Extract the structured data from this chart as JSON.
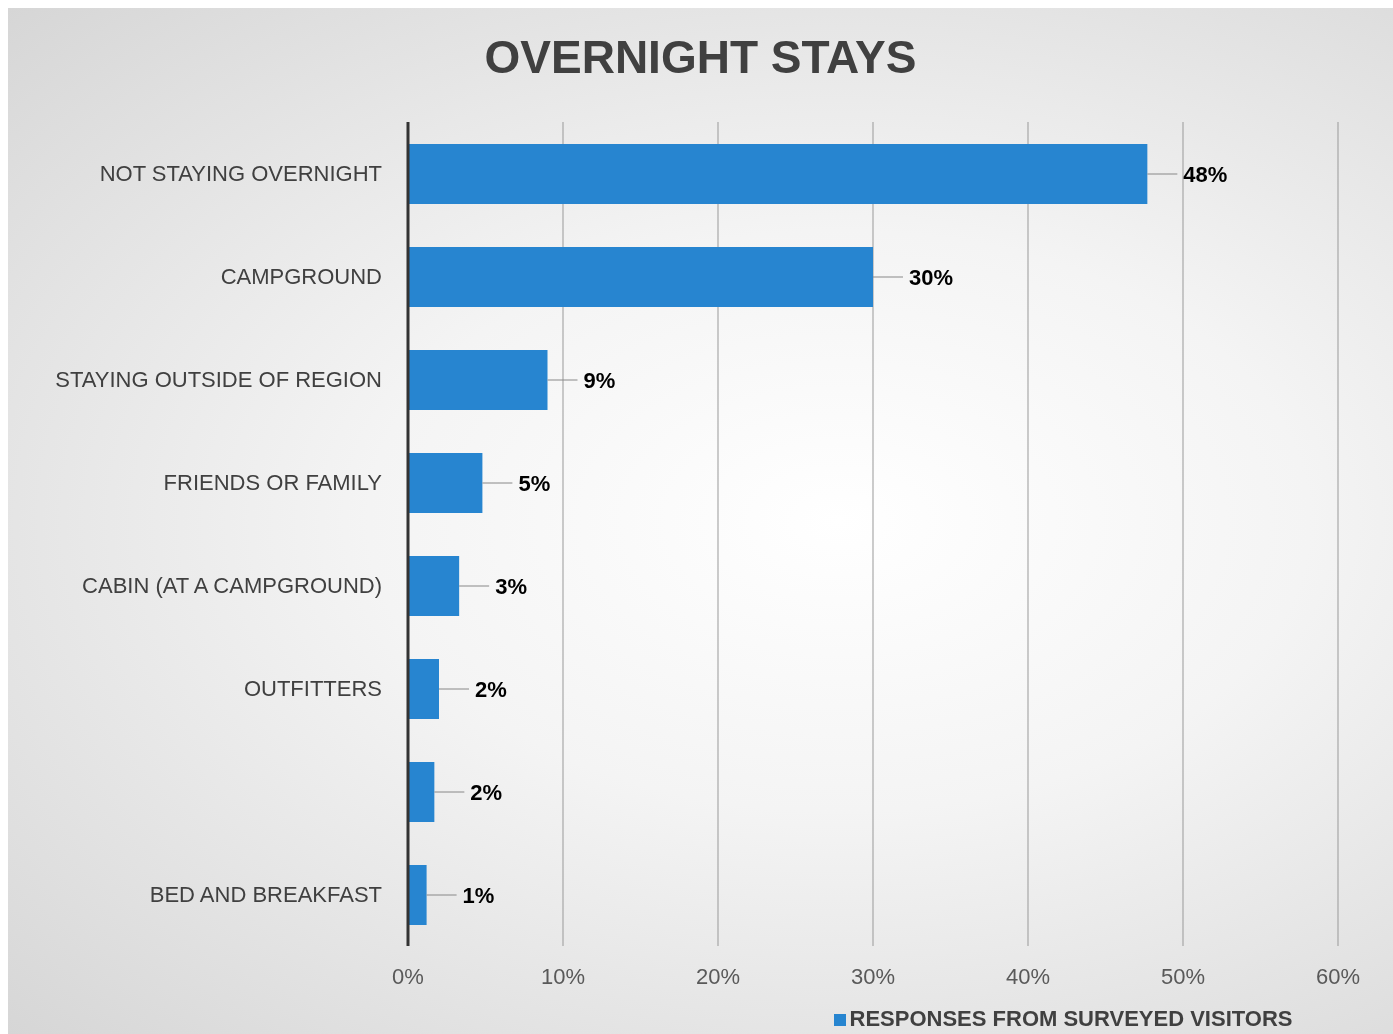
{
  "chart_data": {
    "type": "bar",
    "orientation": "horizontal",
    "title": "OVERNIGHT STAYS",
    "categories": [
      "NOT STAYING OVERNIGHT",
      "CAMPGROUND",
      "STAYING OUTSIDE OF REGION",
      "FRIENDS OR FAMILY",
      "CABIN (AT A CAMPGROUND)",
      "OUTFITTERS",
      null,
      "BED AND BREAKFAST"
    ],
    "series": [
      {
        "name": "RESPONSES FROM SURVEYED VISITORS",
        "color": "#2785d0",
        "values": [
          47.7,
          30.0,
          9.0,
          4.8,
          3.3,
          2.0,
          1.7,
          1.2
        ],
        "value_labels": [
          "48%",
          "30%",
          "9%",
          "5%",
          "3%",
          "2%",
          "2%",
          "1%"
        ]
      }
    ],
    "xlim": [
      0,
      60
    ],
    "xticks": [
      {
        "value": 0,
        "label": "0%"
      },
      {
        "value": 10,
        "label": "10%"
      },
      {
        "value": 20,
        "label": "20%"
      },
      {
        "value": 30,
        "label": "30%"
      },
      {
        "value": 40,
        "label": "40%"
      },
      {
        "value": 50,
        "label": "50%"
      },
      {
        "value": 60,
        "label": "60%"
      }
    ],
    "grid": "x",
    "legend": "bottom"
  }
}
